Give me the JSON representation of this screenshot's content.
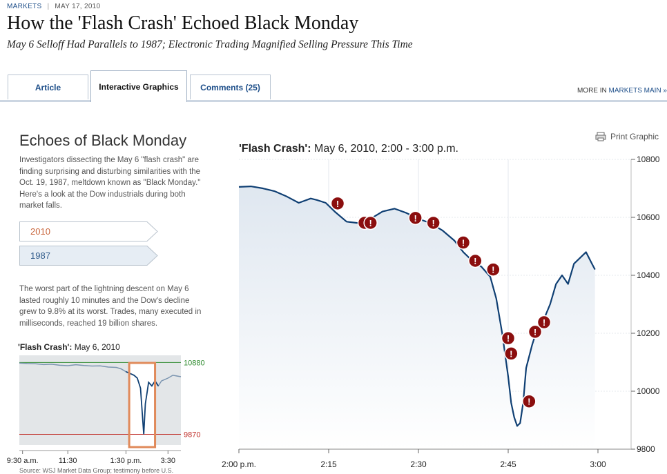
{
  "header": {
    "section": "MARKETS",
    "date": "MAY 17, 2010",
    "headline": "How the 'Flash Crash' Echoed Black Monday",
    "deck": "May 6 Selloff Had Parallels to 1987; Electronic Trading Magnified Selling Pressure This Time"
  },
  "tabs": [
    {
      "label": "Article",
      "active": false
    },
    {
      "label": "Interactive Graphics",
      "active": true
    },
    {
      "label": "Comments (25)",
      "active": false
    }
  ],
  "more": {
    "prefix": "MORE IN ",
    "link": "MARKETS MAIN »"
  },
  "sidebar": {
    "title": "Echoes of Black Monday",
    "intro": "Investigators dissecting the May 6 \"flash crash\" are finding surprising and disturbing similarities with the Oct. 19, 1987, meltdown known as \"Black Monday.\" Here's a look at the Dow industrials during both market falls.",
    "year_buttons": [
      {
        "label": "2010",
        "color": "#c8643a",
        "selected": true
      },
      {
        "label": "1987",
        "color": "#2f5a8a",
        "selected": false
      }
    ],
    "detail": "The worst part of the lightning descent on May 6 lasted roughly 10 minutes and the Dow's decline grew to 9.8% at its worst. Trades, many executed in milliseconds, reached 19 billion shares.",
    "source": "Source: WSJ Market Data Group; testimony before U.S."
  },
  "print_label": "Print Graphic",
  "colors": {
    "line": "#0f3f73",
    "marker": "#8b0e0e",
    "highlight": "#e08a5a",
    "high": "#2e8b2e",
    "low": "#c0302b",
    "mini_line": "#7b95b0"
  },
  "chart_data": [
    {
      "type": "line",
      "title_bold": "'Flash Crash':",
      "title_rest": "May 6, 2010, 2:00 - 3:00 p.m.",
      "xlim": [
        0,
        60
      ],
      "ylim": [
        9800,
        10800
      ],
      "x_ticks": [
        {
          "v": 0,
          "label": "2:00 p.m."
        },
        {
          "v": 15,
          "label": "2:15"
        },
        {
          "v": 30,
          "label": "2:30"
        },
        {
          "v": 45,
          "label": "2:45"
        },
        {
          "v": 60,
          "label": "3:00"
        }
      ],
      "y_ticks": [
        {
          "v": 9800,
          "label": "9800"
        },
        {
          "v": 10000,
          "label": "10000"
        },
        {
          "v": 10200,
          "label": "10200"
        },
        {
          "v": 10400,
          "label": "10400"
        },
        {
          "v": 10600,
          "label": "10600"
        },
        {
          "v": 10800,
          "label": "10800"
        }
      ],
      "x": [
        0,
        2,
        4,
        6,
        8,
        10,
        12,
        13,
        14.5,
        16,
        18,
        20,
        22,
        24,
        26,
        28,
        30,
        32,
        34,
        36,
        37.5,
        39,
        40.5,
        42,
        43,
        44,
        45,
        45.5,
        46,
        46.5,
        47,
        47.5,
        48,
        49,
        50,
        51,
        52,
        53,
        54,
        55,
        56,
        57,
        58,
        59,
        59.5
      ],
      "y": [
        10705,
        10707,
        10700,
        10690,
        10672,
        10650,
        10665,
        10660,
        10650,
        10620,
        10585,
        10580,
        10595,
        10620,
        10630,
        10615,
        10595,
        10580,
        10555,
        10520,
        10480,
        10450,
        10430,
        10395,
        10320,
        10200,
        10050,
        9960,
        9910,
        9880,
        9890,
        9960,
        10080,
        10160,
        10225,
        10250,
        10300,
        10370,
        10400,
        10370,
        10440,
        10460,
        10480,
        10440,
        10420
      ],
      "markers": [
        {
          "x": 16.5,
          "y": 10648
        },
        {
          "x": 21,
          "y": 10581
        },
        {
          "x": 22,
          "y": 10581
        },
        {
          "x": 29.5,
          "y": 10598
        },
        {
          "x": 32.5,
          "y": 10581
        },
        {
          "x": 37.5,
          "y": 10513
        },
        {
          "x": 39.5,
          "y": 10450
        },
        {
          "x": 42.5,
          "y": 10420
        },
        {
          "x": 45,
          "y": 10183
        },
        {
          "x": 45.5,
          "y": 10130
        },
        {
          "x": 48.5,
          "y": 9965
        },
        {
          "x": 49.5,
          "y": 10205
        },
        {
          "x": 51,
          "y": 10238
        }
      ]
    },
    {
      "type": "line",
      "title_bold": "'Flash Crash':",
      "title_rest": "May 6, 2010",
      "xlim": [
        0,
        1
      ],
      "ylim": [
        9720,
        10980
      ],
      "x_ticks": [
        {
          "v": 0.02,
          "label": "9:30 a.m."
        },
        {
          "v": 0.3,
          "label": "11:30"
        },
        {
          "v": 0.66,
          "label": "1:30 p.m."
        },
        {
          "v": 0.92,
          "label": "3:30"
        }
      ],
      "high": {
        "v": 10880,
        "label": "10880"
      },
      "low": {
        "v": 9870,
        "label": "9870"
      },
      "x": [
        0,
        0.05,
        0.1,
        0.15,
        0.2,
        0.25,
        0.3,
        0.35,
        0.4,
        0.45,
        0.5,
        0.55,
        0.6,
        0.63,
        0.66,
        0.69,
        0.71,
        0.73,
        0.75,
        0.76,
        0.77,
        0.78,
        0.79,
        0.8,
        0.82,
        0.84,
        0.86,
        0.88,
        0.9,
        0.92,
        0.95,
        1.0
      ],
      "y": [
        10870,
        10865,
        10862,
        10850,
        10855,
        10840,
        10835,
        10848,
        10838,
        10830,
        10832,
        10815,
        10810,
        10790,
        10750,
        10720,
        10700,
        10660,
        10520,
        10200,
        9870,
        10300,
        10450,
        10600,
        10550,
        10620,
        10550,
        10620,
        10640,
        10660,
        10700,
        10680
      ],
      "highlight_range": [
        0.68,
        0.84
      ]
    }
  ]
}
